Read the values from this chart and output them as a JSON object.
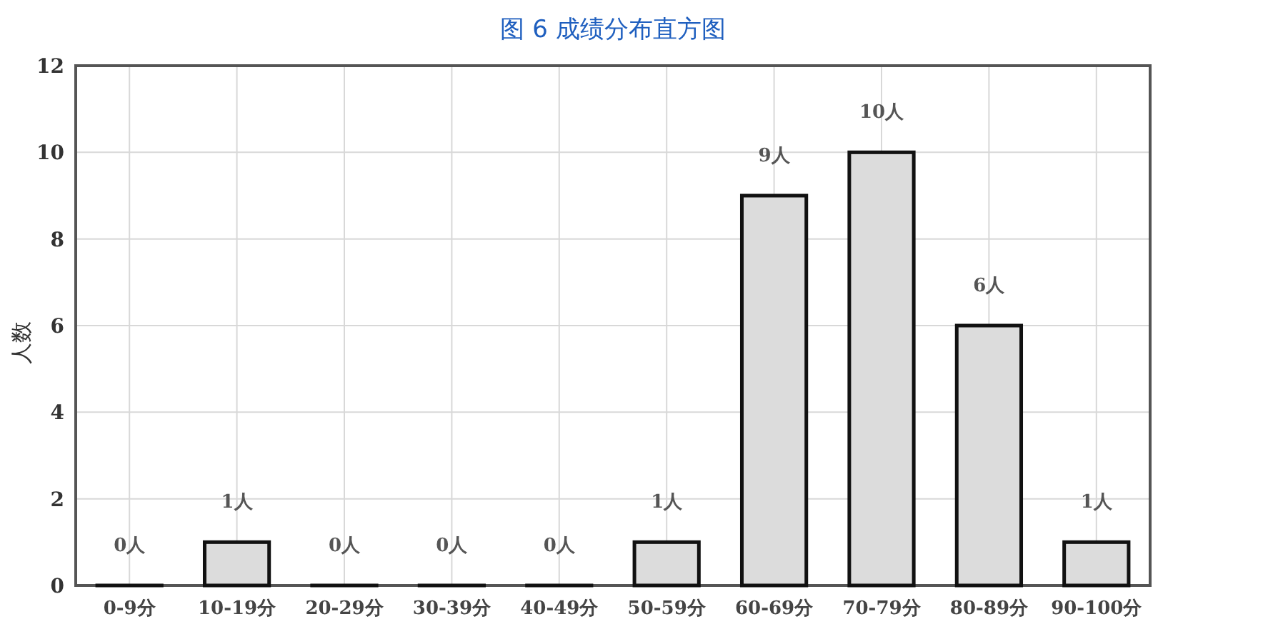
{
  "chart_data": {
    "type": "bar",
    "ylabel": "人数",
    "categories": [
      "0-9分",
      "10-19分",
      "20-29分",
      "30-39分",
      "40-49分",
      "50-59分",
      "60-69分",
      "70-79分",
      "80-89分",
      "90-100分"
    ],
    "values": [
      0,
      1,
      0,
      0,
      0,
      1,
      9,
      10,
      6,
      1
    ],
    "value_labels": [
      "0人",
      "1人",
      "0人",
      "0人",
      "0人",
      "1人",
      "9人",
      "10人",
      "6人",
      "1人"
    ],
    "color": "#dcdcdc",
    "ylim": [
      0,
      12
    ],
    "yticks": [
      0,
      2,
      4,
      6,
      8,
      10,
      12
    ],
    "grid": true,
    "annotations": [
      "图 6  成绩分布直方图"
    ]
  }
}
